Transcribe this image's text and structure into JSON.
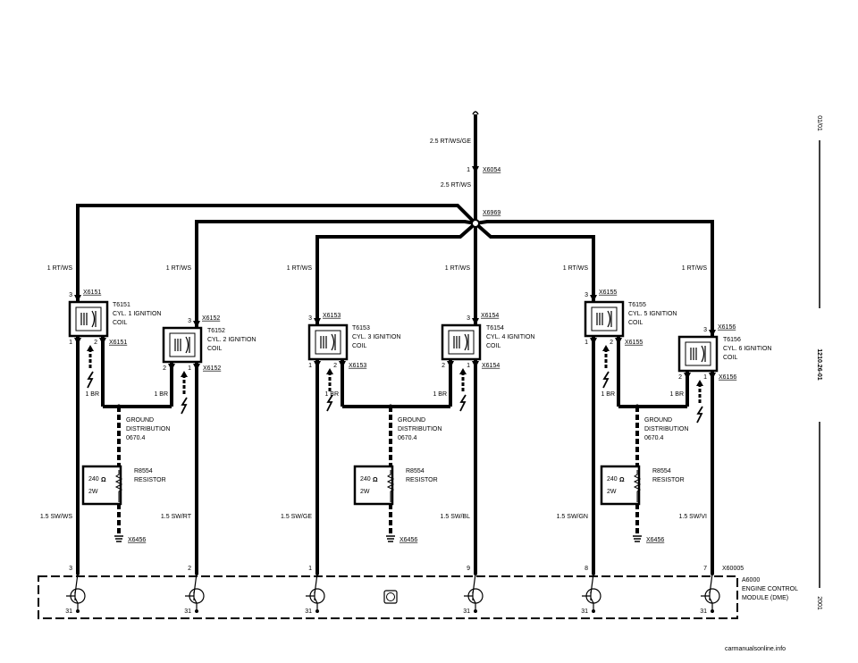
{
  "feed": {
    "wire_top": "2.5 RT/WS/GE",
    "pin": "1",
    "connector": "X6054",
    "wire": "2.5 RT/WS",
    "splice": "X6969"
  },
  "coils": [
    {
      "supply": "1 RT/WS",
      "pin_top": "3",
      "connector_top": "X6151",
      "pin_left": "1",
      "pin_right": "2",
      "connector_bottom": "X6151",
      "lines": [
        "T6151",
        "CYL. 1 IGNITION",
        "COIL"
      ],
      "ground_wire": "1 BR",
      "output_wire": "1.5 SW/WS",
      "ecm_pin": "3",
      "ecm_ground": "31"
    },
    {
      "supply": "1 RT/WS",
      "pin_top": "3",
      "connector_top": "X6152",
      "pin_left": "2",
      "pin_right": "1",
      "connector_bottom": "X6152",
      "lines": [
        "T6152",
        "CYL. 2 IGNITION",
        "COIL"
      ],
      "ground_wire": "1 BR",
      "output_wire": "1.5 SW/RT",
      "ecm_pin": "2",
      "ecm_ground": "31"
    },
    {
      "supply": "1 RT/WS",
      "pin_top": "3",
      "connector_top": "X6153",
      "pin_left": "1",
      "pin_right": "2",
      "connector_bottom": "X6153",
      "lines": [
        "T6153",
        "CYL. 3 IGNITION",
        "COIL"
      ],
      "ground_wire": "1 BR",
      "output_wire": "1.5 SW/GE",
      "ecm_pin": "1",
      "ecm_ground": "31"
    },
    {
      "supply": "1 RT/WS",
      "pin_top": "3",
      "connector_top": "X6154",
      "pin_left": "2",
      "pin_right": "1",
      "connector_bottom": "X6154",
      "lines": [
        "T6154",
        "CYL. 4 IGNITION",
        "COIL"
      ],
      "ground_wire": "1 BR",
      "output_wire": "1.5 SW/BL",
      "ecm_pin": "9",
      "ecm_ground": "31"
    },
    {
      "supply": "1 RT/WS",
      "pin_top": "3",
      "connector_top": "X6155",
      "pin_left": "1",
      "pin_right": "2",
      "connector_bottom": "X6155",
      "lines": [
        "T6155",
        "CYL. 5 IGNITION",
        "COIL"
      ],
      "ground_wire": "1 BR",
      "output_wire": "1.5 SW/GN",
      "ecm_pin": "8",
      "ecm_ground": "31"
    },
    {
      "supply": "1 RT/WS",
      "pin_top": "3",
      "connector_top": "X6156",
      "pin_left": "2",
      "pin_right": "1",
      "connector_bottom": "X6156",
      "lines": [
        "T6156",
        "CYL. 6 IGNITION",
        "COIL"
      ],
      "ground_wire": "1 BR",
      "output_wire": "1.5 SW/VI",
      "ecm_pin": "7",
      "ecm_ground": "31"
    }
  ],
  "grounds": [
    {
      "lines": [
        "GROUND",
        "DISTRIBUTION",
        "0670.4"
      ],
      "resistor_lines": [
        "R8554",
        "RESISTOR"
      ],
      "value": "240",
      "unit": "Ω",
      "power": "2W",
      "ground_connector": "X6456"
    },
    {
      "lines": [
        "GROUND",
        "DISTRIBUTION",
        "0670.4"
      ],
      "resistor_lines": [
        "R8554",
        "RESISTOR"
      ],
      "value": "240",
      "unit": "Ω",
      "power": "2W",
      "ground_connector": "X6456"
    },
    {
      "lines": [
        "GROUND",
        "DISTRIBUTION",
        "0670.4"
      ],
      "resistor_lines": [
        "R8554",
        "RESISTOR"
      ],
      "value": "240",
      "unit": "Ω",
      "power": "2W",
      "ground_connector": "X6456"
    }
  ],
  "ecm": {
    "connector": "X60005",
    "lines": [
      "A6000",
      "ENGINE CONTROL",
      "MODULE (DME)"
    ]
  },
  "side": {
    "date": "01/01",
    "page": "1210.26-01",
    "year": "2001"
  },
  "watermark": "carmanualsonline.info"
}
